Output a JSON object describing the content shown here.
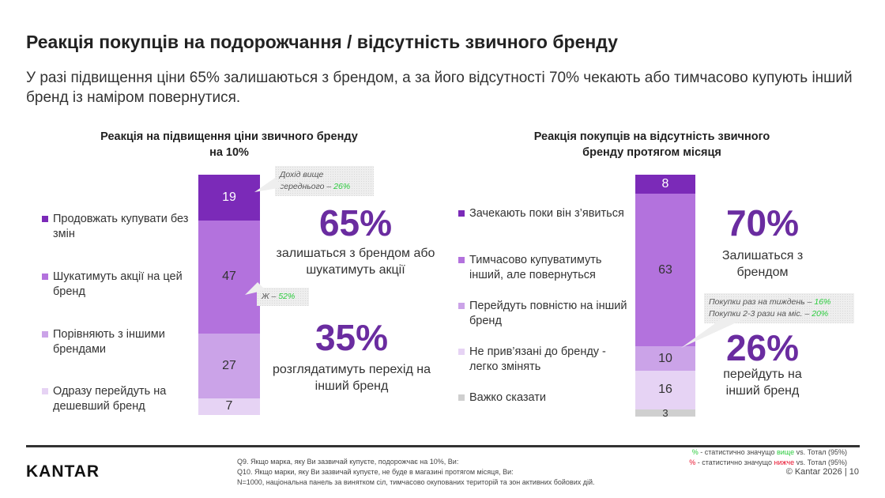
{
  "title": "Реакція покупців на подорожчання / відсутність звичного бренду",
  "subtitle": "У разі підвищення ціни 65% залишаються з брендом, а за його відсутності 70% чекають або тимчасово купують інший бренд із наміром повернутися.",
  "colors": {
    "accent": "#6a2ca0",
    "significant_higher": "#2ecc40",
    "significant_lower": "#e8112d"
  },
  "chart_data": [
    {
      "type": "bar",
      "stacked": true,
      "title": "Реакція на підвищення ціни звичного бренду на 10%",
      "categories": [
        "Продовжать купувати без змін",
        "Шукатимуть акції на цей бренд",
        "Порівняють з іншими брендами",
        "Одразу перейдуть на дешевший бренд"
      ],
      "values": [
        19,
        47,
        27,
        7
      ],
      "colors": [
        "#7b2ab8",
        "#b372dd",
        "#cba3e8",
        "#e6d3f4"
      ],
      "label_colors": [
        "#ffffff",
        "#333333",
        "#333333",
        "#333333"
      ]
    },
    {
      "type": "bar",
      "stacked": true,
      "title": "Реакція покупців на відсутність звичного бренду протягом місяця",
      "categories": [
        "Зачекають поки він з’явиться",
        "Тимчасово купуватимуть інший, але повернуться",
        " Перейдуть повністю на інший бренд",
        "Не прив’язані до бренду - легко змінять",
        "Важко сказати"
      ],
      "values": [
        8,
        63,
        10,
        16,
        3
      ],
      "colors": [
        "#7b2ab8",
        "#b372dd",
        "#cba3e8",
        "#e6d3f4",
        "#cfcfcf"
      ],
      "label_colors": [
        "#ffffff",
        "#333333",
        "#333333",
        "#333333",
        "#333333"
      ]
    }
  ],
  "left": {
    "title": "Реакція на підвищення ціни звичного бренду на 10%",
    "callout1": {
      "text": "Дохід вище середнього – ",
      "value": "26%"
    },
    "callout2": {
      "text": "Ж – ",
      "value": "52%"
    },
    "stat1": {
      "value": "65%",
      "text": "залишаться з брендом або шукатимуть акції"
    },
    "stat2": {
      "value": "35%",
      "text": "розглядатимуть перехід на інший бренд"
    }
  },
  "right": {
    "title": "Реакція покупців на відсутність звичного бренду протягом місяця",
    "callout": {
      "line1": "Покупки раз на тиждень – ",
      "value1": "16%",
      "line2": "Покупки 2-3 рази на міс. – ",
      "value2": "20%"
    },
    "stat1": {
      "value": "70%",
      "text": "Залишаться з брендом"
    },
    "stat2": {
      "value": "26%",
      "text": "перейдуть на інший бренд"
    }
  },
  "footer": {
    "logo": "KANTAR",
    "notes": [
      "Q9. Якщо марка, яку Ви зазвичай купуєте, подорожчає на 10%, Ви:",
      "Q10. Якщо марки, яку Ви зазвичай купуєте, не буде в магазині протягом місяця, Ви:",
      "N=1000, національна панель за винятком сіл, тимчасово окупованих територій та зон активних бойових дій."
    ],
    "legend_higher": {
      "mark": "%",
      "pre": " - статистично значущо ",
      "word": "вище",
      "post": " vs. Тотал (95%)"
    },
    "legend_lower": {
      "mark": "%",
      "pre": " - статистично значущо ",
      "word": "нижче",
      "post": " vs. Тотал (95%)"
    },
    "copyright": "© Kantar 2026 | 10"
  }
}
